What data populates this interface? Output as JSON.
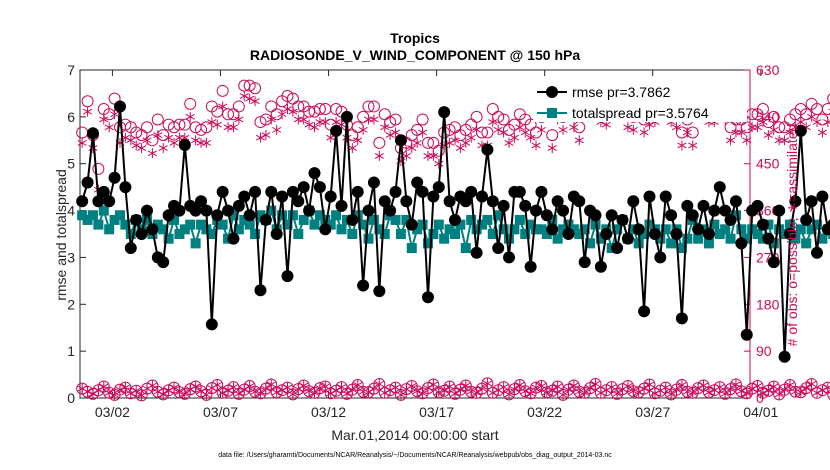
{
  "chart_data": {
    "type": "line",
    "title": "Tropics",
    "subtitle": "RADIOSONDE_V_WIND_COMPONENT @ 150 hPa",
    "xlabel": "Mar.01,2014 00:00:00 start",
    "ylabel": "rmse and totalspread",
    "ylabel_right": "# of obs: o=possible; ∗=assimilated",
    "footnote": "data file: /Users/gharamti/Documents/NCAR/Reanalysis/~/Documents/NCAR/Reanalysis/webpub/obs_diag_output_2014-03.nc",
    "xlim": [
      0.5,
      31.5
    ],
    "ylim": [
      0,
      7
    ],
    "ylim_right": [
      0,
      630
    ],
    "x_ticks": [
      2,
      7,
      12,
      17,
      22,
      27,
      32
    ],
    "x_tick_labels": [
      "03/02",
      "03/07",
      "03/12",
      "03/17",
      "03/22",
      "03/27",
      "04/01"
    ],
    "y_ticks": [
      0,
      1,
      2,
      3,
      4,
      5,
      6,
      7
    ],
    "y_tick_labels": [
      "0",
      "1",
      "2",
      "3",
      "4",
      "5",
      "6",
      "7"
    ],
    "y_ticks_right": [
      0,
      90,
      180,
      270,
      360,
      450,
      540,
      630
    ],
    "y_tick_labels_right": [
      "0",
      "90",
      "180",
      "270",
      "360",
      "450",
      "540",
      "630"
    ],
    "x_start": 0.6,
    "x_step": 0.25,
    "series": [
      {
        "name": "rmse pr=3.7862",
        "color": "#000000",
        "marker": "filled-circle",
        "axis": "left",
        "values": [
          4.2,
          4.6,
          5.65,
          4.2,
          4.4,
          4.2,
          4.7,
          6.22,
          4.5,
          3.2,
          3.8,
          3.5,
          4.0,
          3.6,
          3.0,
          2.9,
          3.9,
          4.1,
          4.0,
          5.4,
          4.1,
          4.0,
          4.2,
          4.0,
          1.57,
          3.9,
          4.4,
          4.0,
          3.4,
          4.1,
          4.3,
          3.9,
          4.4,
          2.3,
          3.8,
          4.4,
          3.5,
          4.3,
          2.6,
          4.4,
          4.2,
          4.5,
          4.0,
          4.8,
          4.5,
          3.6,
          4.3,
          5.7,
          4.1,
          6.0,
          3.8,
          4.4,
          2.4,
          4.0,
          4.6,
          2.28,
          4.2,
          4.0,
          4.4,
          5.5,
          4.2,
          3.7,
          4.6,
          4.4,
          2.15,
          4.3,
          4.5,
          6.1,
          4.2,
          3.8,
          4.3,
          4.2,
          4.4,
          3.1,
          4.3,
          5.3,
          4.2,
          3.2,
          4.1,
          3.0,
          4.4,
          4.4,
          4.1,
          2.8,
          4.0,
          4.4,
          3.9,
          3.6,
          4.2,
          4.0,
          3.5,
          4.3,
          4.2,
          2.9,
          4.0,
          3.9,
          2.8,
          3.5,
          3.9,
          3.2,
          3.8,
          3.4,
          4.2,
          3.6,
          1.85,
          4.3,
          3.5,
          3.0,
          4.3,
          3.9,
          3.5,
          1.7,
          4.1,
          3.9,
          3.6,
          4.1,
          3.5,
          4.0,
          4.5,
          4.0,
          3.8,
          4.2,
          3.3,
          1.35,
          4.0,
          4.1,
          3.7,
          3.4,
          2.9,
          4.0,
          0.88,
          3.5,
          4.2,
          5.7,
          3.8,
          4.2,
          3.1,
          4.3,
          3.6,
          3.7,
          3.0,
          4.0,
          4.2,
          3.8,
          1.45,
          4.3,
          3.5,
          4.0,
          2.4,
          4.4,
          2.4,
          4.4,
          4.2,
          2.6,
          4.4,
          3.6,
          2.9,
          3.8,
          4.3,
          3.9,
          2.3,
          3.9,
          4.2,
          3.5,
          2.0,
          3.8,
          3.6,
          3.9,
          1.78
        ]
      },
      {
        "name": "totalspread pr=3.5764",
        "color": "#008080",
        "marker": "filled-square",
        "axis": "left",
        "values": [
          3.9,
          3.8,
          3.9,
          3.7,
          4.0,
          3.6,
          3.8,
          3.9,
          3.7,
          3.5,
          3.8,
          3.6,
          3.8,
          3.5,
          3.7,
          3.6,
          3.4,
          3.8,
          3.5,
          3.6,
          3.7,
          3.3,
          3.7,
          3.6,
          3.5,
          3.8,
          3.7,
          3.4,
          3.9,
          3.6,
          3.8,
          3.7,
          3.5,
          3.9,
          3.8,
          4.0,
          3.6,
          3.9,
          3.7,
          3.9,
          3.5,
          3.8,
          4.0,
          3.7,
          3.9,
          3.8,
          3.7,
          3.9,
          3.6,
          3.8,
          3.5,
          3.9,
          3.7,
          3.4,
          3.8,
          3.6,
          3.5,
          3.9,
          3.8,
          3.5,
          3.8,
          3.2,
          3.6,
          3.7,
          3.3,
          3.5,
          3.7,
          3.4,
          3.6,
          3.5,
          3.7,
          3.2,
          3.8,
          3.6,
          3.7,
          3.8,
          3.5,
          3.9,
          3.6,
          3.4,
          3.6,
          3.8,
          3.5,
          3.7,
          3.6,
          3.6,
          3.5,
          3.8,
          3.4,
          3.6,
          3.7,
          3.6,
          3.5,
          3.6,
          3.3,
          3.7,
          3.4,
          3.6,
          3.2,
          3.6,
          3.8,
          3.4,
          3.6,
          3.3,
          3.5,
          3.7,
          3.6,
          3.4,
          3.6,
          3.3,
          3.6,
          3.2,
          3.4,
          3.8,
          3.4,
          3.6,
          3.3,
          3.7,
          3.5,
          3.6,
          3.4,
          3.9,
          3.6,
          3.4,
          3.6,
          3.5,
          3.4,
          3.7,
          3.3,
          3.6,
          3.5,
          3.7,
          3.4,
          3.6,
          3.3,
          3.6,
          3.7,
          3.4,
          3.6,
          3.5,
          3.7,
          3.4,
          3.2,
          3.6,
          3.5,
          3.4,
          3.6,
          3.3,
          3.5,
          3.6,
          3.4,
          3.5,
          3.3,
          3.6,
          3.2,
          3.5,
          3.4,
          3.6,
          3.3,
          3.5,
          3.6,
          3.2,
          3.4,
          3.3,
          3.2,
          3.4,
          3.3,
          3.2,
          3.4
        ]
      },
      {
        "name": "# possible obs (cycle A)",
        "color": "#cc0a5a",
        "marker": "open-circle",
        "axis": "right",
        "values": [
          510,
          570,
          505,
          440,
          555,
          545,
          575,
          520,
          525,
          520,
          510,
          505,
          520,
          495,
          535,
          505,
          525,
          520,
          525,
          525,
          565,
          520,
          515,
          520,
          560,
          550,
          590,
          545,
          545,
          560,
          600,
          600,
          595,
          530,
          535,
          560,
          545,
          570,
          580,
          575,
          560,
          560,
          550,
          550,
          555,
          555,
          525,
          555,
          550,
          525,
          505,
          520,
          540,
          560,
          560,
          490,
          545,
          530,
          535,
          480,
          490,
          505,
          515,
          535,
          490,
          490,
          475,
          510,
          515,
          520,
          505,
          515,
          525,
          540,
          510,
          510,
          555,
          540,
          535,
          515,
          525,
          545,
          535,
          525,
          510,
          540,
          595,
          505,
          560,
          540,
          565,
          545,
          520,
          600,
          565,
          590,
          555,
          550,
          565,
          590,
          600,
          545,
          540,
          565,
          535,
          550,
          555,
          575,
          575,
          555,
          545,
          510,
          535,
          510,
          580,
          580,
          555,
          555,
          580,
          560,
          520,
          535,
          535,
          520,
          545,
          545,
          555,
          530,
          540,
          520,
          520,
          535,
          545,
          555,
          545,
          565,
          555,
          535,
          555,
          575,
          565,
          580,
          555,
          565,
          525,
          520,
          545,
          545,
          550,
          575,
          555,
          525,
          545,
          565,
          550,
          580,
          600,
          565,
          545,
          545,
          570,
          595,
          605,
          605
        ]
      },
      {
        "name": "# assimilated obs (cycle A)",
        "color": "#cc0a5a",
        "marker": "asterisk",
        "axis": "right",
        "values": [
          490,
          550,
          480,
          400,
          535,
          520,
          545,
          490,
          500,
          495,
          485,
          480,
          495,
          470,
          505,
          480,
          500,
          490,
          500,
          500,
          540,
          495,
          490,
          490,
          530,
          525,
          560,
          520,
          520,
          535,
          580,
          575,
          570,
          500,
          505,
          535,
          515,
          545,
          555,
          550,
          535,
          535,
          525,
          520,
          530,
          530,
          500,
          530,
          525,
          500,
          480,
          495,
          515,
          535,
          535,
          465,
          520,
          505,
          510,
          455,
          465,
          480,
          490,
          510,
          465,
          465,
          450,
          485,
          490,
          495,
          480,
          490,
          500,
          515,
          485,
          485,
          530,
          515,
          510,
          490,
          500,
          520,
          510,
          500,
          485,
          515,
          570,
          480,
          535,
          515,
          540,
          520,
          495,
          575,
          540,
          565,
          530,
          525,
          540,
          565,
          575,
          520,
          515,
          540,
          510,
          525,
          530,
          550,
          550,
          530,
          520,
          485,
          510,
          485,
          555,
          555,
          530,
          530,
          555,
          535,
          495,
          510,
          510,
          495,
          520,
          520,
          530,
          505,
          515,
          495,
          495,
          510,
          520,
          530,
          520,
          540,
          530,
          510,
          530,
          550,
          540,
          555,
          530,
          540,
          500,
          495,
          520,
          520,
          525,
          550,
          530,
          500,
          520,
          540,
          525,
          555,
          575,
          540,
          520,
          520,
          545,
          570,
          580,
          580
        ]
      },
      {
        "name": "# possible obs (cycle B)",
        "color": "#cc0a5a",
        "marker": "open-circle",
        "axis": "right",
        "values": [
          18,
          12,
          8,
          15,
          22,
          10,
          6,
          16,
          20,
          9,
          14,
          5,
          18,
          24,
          12,
          7,
          15,
          20,
          11,
          8,
          17,
          22,
          13,
          6,
          19,
          25,
          10,
          14,
          21,
          8,
          16,
          23,
          12,
          9,
          18,
          26,
          11,
          15,
          20,
          7,
          17,
          24,
          13,
          10,
          19,
          22,
          9,
          14,
          21,
          8,
          16,
          25,
          12,
          11,
          18,
          27,
          10,
          15,
          20,
          6,
          17,
          23,
          13,
          9,
          19,
          26,
          11,
          14,
          22,
          8,
          16,
          24,
          12,
          10,
          18,
          28,
          10,
          15,
          21,
          7,
          17,
          25,
          13,
          9,
          20,
          23,
          11,
          14,
          22,
          6,
          16,
          24,
          12,
          10,
          19,
          27,
          10,
          15,
          21,
          8,
          17,
          23,
          13,
          11,
          18,
          26,
          9,
          14,
          20,
          7,
          16,
          25,
          12,
          10,
          19,
          24,
          11,
          15,
          21,
          8,
          17,
          26,
          13,
          9,
          18,
          23,
          10,
          14,
          22,
          7,
          16,
          25,
          12,
          11,
          19,
          27,
          10,
          15,
          20,
          6,
          17,
          24,
          13,
          9,
          18,
          26,
          11,
          14,
          21,
          8,
          16,
          23,
          12,
          10,
          19,
          25,
          10,
          15,
          22,
          7,
          17,
          24,
          13,
          11
        ]
      },
      {
        "name": "# assimilated obs (cycle B)",
        "color": "#cc0a5a",
        "marker": "asterisk",
        "axis": "right",
        "values": [
          18,
          12,
          8,
          15,
          22,
          10,
          6,
          16,
          20,
          9,
          14,
          5,
          18,
          24,
          12,
          7,
          15,
          20,
          11,
          8,
          17,
          22,
          13,
          6,
          19,
          25,
          10,
          14,
          21,
          8,
          16,
          23,
          12,
          9,
          18,
          26,
          11,
          15,
          20,
          7,
          17,
          24,
          13,
          10,
          19,
          22,
          9,
          14,
          21,
          8,
          16,
          25,
          12,
          11,
          18,
          27,
          10,
          15,
          20,
          6,
          17,
          23,
          13,
          9,
          19,
          26,
          11,
          14,
          22,
          8,
          16,
          24,
          12,
          10,
          18,
          28,
          10,
          15,
          21,
          7,
          17,
          25,
          13,
          9,
          20,
          23,
          11,
          14,
          22,
          6,
          16,
          24,
          12,
          10,
          19,
          27,
          10,
          15,
          21,
          8,
          17,
          23,
          13,
          11,
          18,
          26,
          9,
          14,
          20,
          7,
          16,
          25,
          12,
          10,
          19,
          24,
          11,
          15,
          21,
          8,
          17,
          26,
          13,
          9,
          18,
          23,
          10,
          14,
          22,
          7,
          16,
          25,
          12,
          11,
          19,
          27,
          10,
          15,
          20,
          6,
          17,
          24,
          13,
          9,
          18,
          26,
          11,
          14,
          21,
          8,
          16,
          23,
          12,
          10,
          19,
          25,
          10,
          15,
          22,
          7,
          17,
          24,
          13,
          11
        ]
      }
    ],
    "legend": [
      {
        "label": "rmse pr=3.7862",
        "color": "#000000",
        "marker": "filled-circle"
      },
      {
        "label": "totalspread pr=3.5764",
        "color": "#008080",
        "marker": "filled-square"
      }
    ],
    "legend_position": "top-right",
    "grid": false
  }
}
